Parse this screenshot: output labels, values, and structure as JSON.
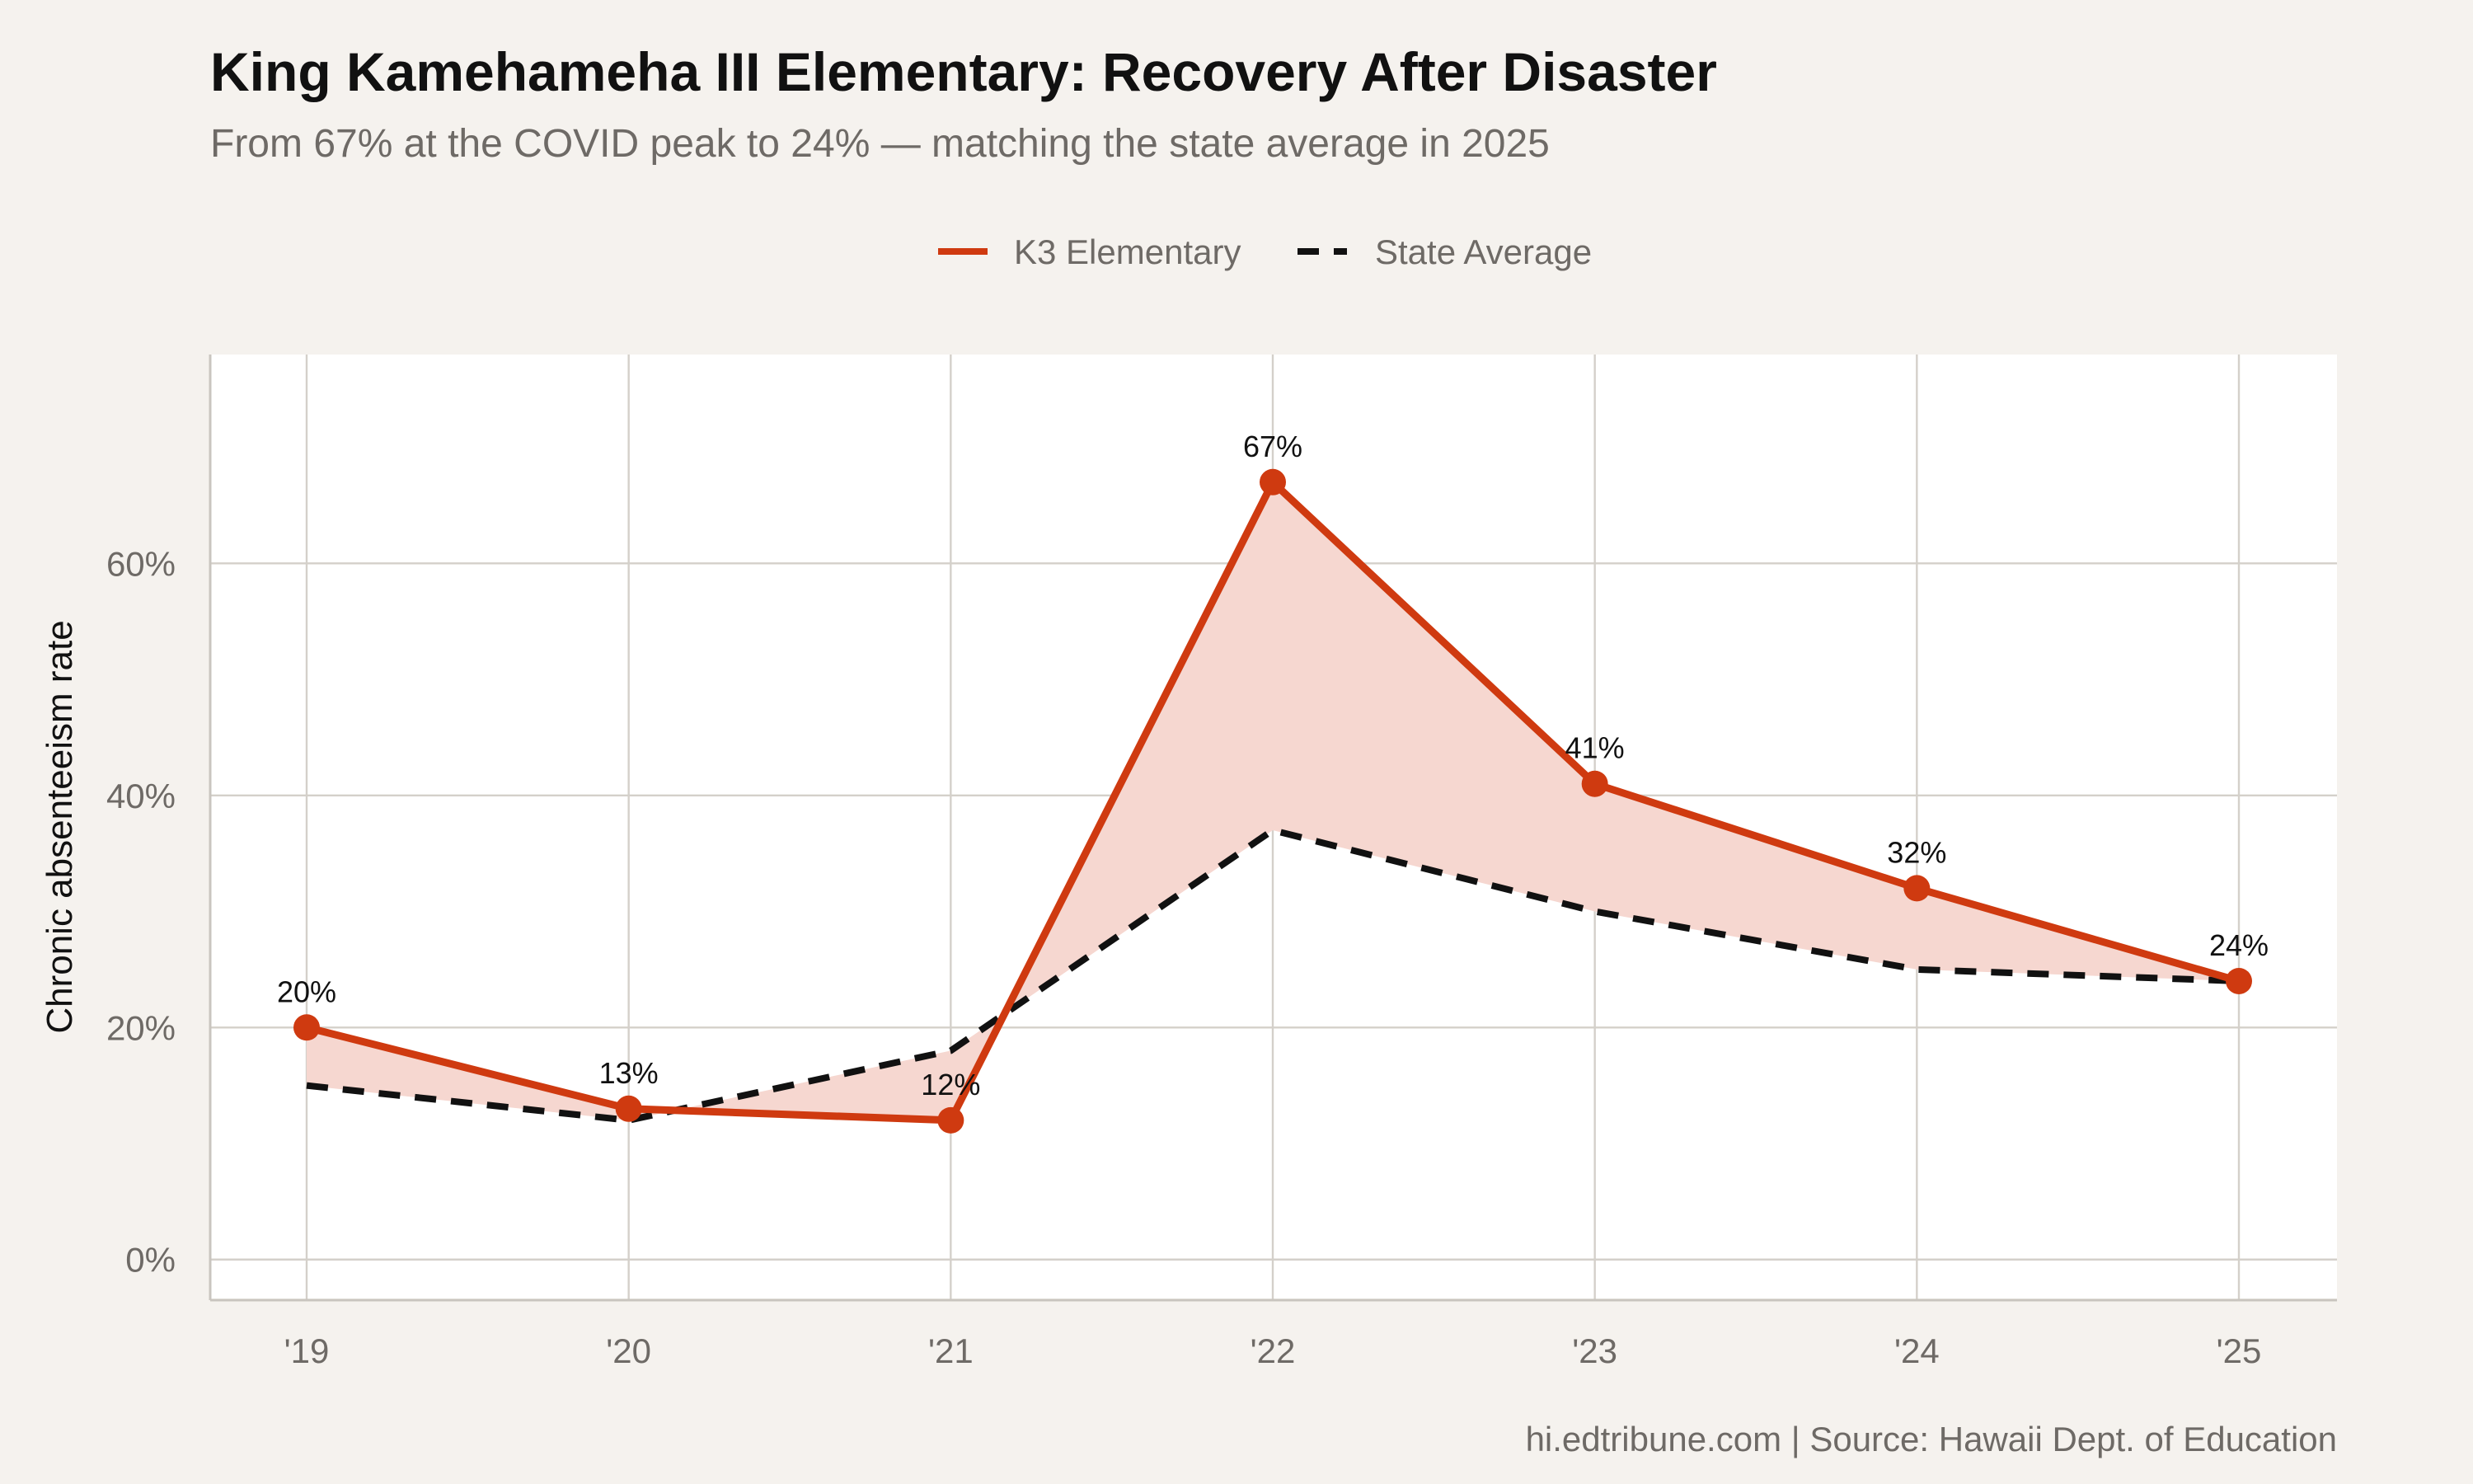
{
  "title": "King Kamehameha III Elementary: Recovery After Disaster",
  "subtitle": "From 67% at the COVID peak to 24% — matching the state average in 2025",
  "caption": "hi.edtribune.com | Source: Hawaii Dept. of Education",
  "colors": {
    "background": "#f5f2ee",
    "panel": "#ffffff",
    "school": "#cf3a10",
    "state": "#111111",
    "gap_fill": "#f6d7d0",
    "grid": "#d4d0ca",
    "muted_text": "#6e6a66"
  },
  "chart_data": {
    "type": "line",
    "x": [
      "'19",
      "'20",
      "'21",
      "'22",
      "'23",
      "'24",
      "'25"
    ],
    "ylabel": "Chronic absenteeism rate",
    "ylim": [
      -3.5,
      78
    ],
    "yticks": [
      0,
      20,
      40,
      60
    ],
    "ytick_labels": [
      "0%",
      "20%",
      "40%",
      "60%"
    ],
    "grid": true,
    "legend_position": "top-center",
    "fill_between_series": true,
    "series": [
      {
        "name": "K3 Elementary",
        "values": [
          20,
          13,
          12,
          67,
          41,
          32,
          24
        ],
        "labels": [
          "20%",
          "13%",
          "12%",
          "67%",
          "41%",
          "32%",
          "24%"
        ],
        "line_style": "solid",
        "markers": true
      },
      {
        "name": "State Average",
        "values": [
          15,
          12,
          18,
          37,
          30,
          25,
          24
        ],
        "line_style": "dashed",
        "markers": false
      }
    ]
  }
}
